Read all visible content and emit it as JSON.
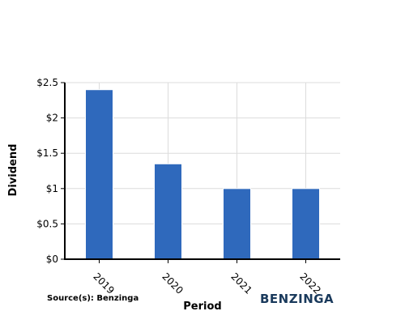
{
  "chart_data": {
    "type": "bar",
    "categories": [
      "2019",
      "2020",
      "2021",
      "2022"
    ],
    "values": [
      2.4,
      1.35,
      1.0,
      1.0
    ],
    "xlabel": "Period",
    "ylabel": "Dividend",
    "ylim": [
      0,
      2.5
    ],
    "yticks": [
      "$0",
      "$0.5",
      "$1",
      "$1.5",
      "$2",
      "$2.5"
    ],
    "grid": true,
    "bar_color": "#2f69bc"
  },
  "footer": {
    "source": "Source(s): Benzinga",
    "logo": "BENZINGA"
  }
}
